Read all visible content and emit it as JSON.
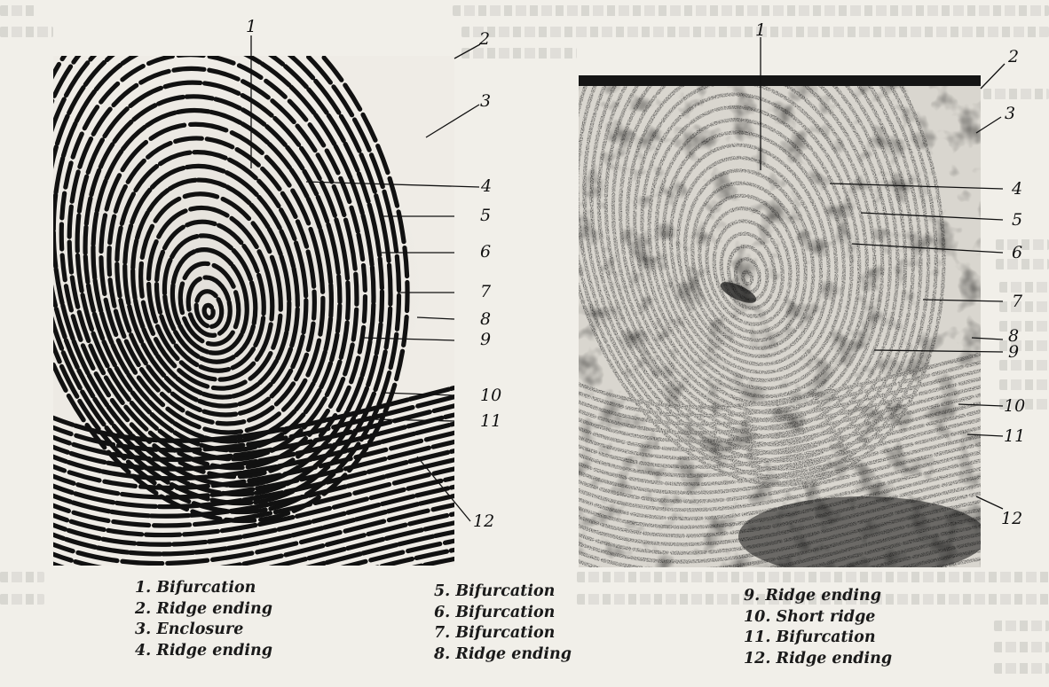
{
  "figure": {
    "callout_numbers": [
      "1",
      "2",
      "3",
      "4",
      "5",
      "6",
      "7",
      "8",
      "9",
      "10",
      "11",
      "12"
    ]
  },
  "legend": {
    "col1": [
      "1. Bifurcation",
      "2. Ridge ending",
      "3. Enclosure",
      "4. Ridge ending"
    ],
    "col2": [
      "5. Bifurcation",
      "6. Bifurcation",
      "7. Bifurcation",
      "8. Ridge ending"
    ],
    "col3": [
      "9. Ridge ending",
      "10. Short ridge",
      "11. Bifurcation",
      "12. Ridge ending"
    ]
  }
}
